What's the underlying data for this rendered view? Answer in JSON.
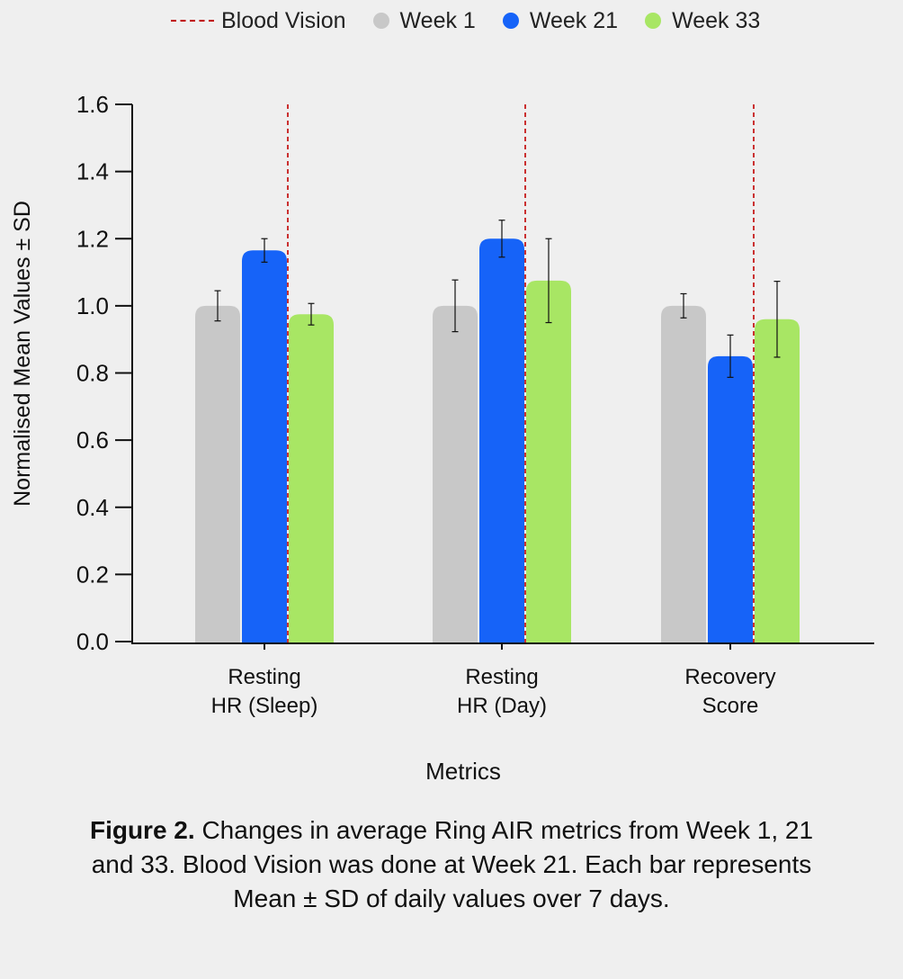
{
  "legend": {
    "reference_label": "Blood Vision",
    "series_labels": [
      "Week 1",
      "Week 21",
      "Week 33"
    ]
  },
  "chart_data": {
    "type": "bar",
    "title": "",
    "xlabel": "Metrics",
    "ylabel": "Normalised Mean Values ± SD",
    "ylim": [
      0.0,
      1.6
    ],
    "yticks": [
      "0.0",
      "0.2",
      "0.4",
      "0.6",
      "0.8",
      "1.0",
      "1.2",
      "1.4",
      "1.6"
    ],
    "grid": false,
    "legend_position": "top",
    "categories": [
      [
        "Resting",
        "HR (Sleep)"
      ],
      [
        "Resting",
        "HR (Day)"
      ],
      [
        "Recovery",
        "Score"
      ]
    ],
    "series": [
      {
        "name": "Week 1",
        "color": "#c8c8c8",
        "values": [
          1.0,
          1.0,
          1.0
        ],
        "sd": [
          0.045,
          0.077,
          0.036
        ]
      },
      {
        "name": "Week 21",
        "color": "#1663f8",
        "values": [
          1.165,
          1.2,
          0.85
        ],
        "sd": [
          0.035,
          0.055,
          0.063
        ]
      },
      {
        "name": "Week 33",
        "color": "#a8e664",
        "values": [
          0.975,
          1.075,
          0.96
        ],
        "sd": [
          0.032,
          0.125,
          0.113
        ]
      }
    ],
    "reference_line": {
      "name": "Blood Vision",
      "color": "#c00000",
      "style": "dashed",
      "position": "at Week 21 in each group"
    }
  },
  "caption": {
    "label": "Figure 2.",
    "line1": "Changes in average Ring AIR metrics from Week 1, 21",
    "line2": "and 33. Blood Vision was done at Week 21. Each bar represents",
    "line3": "Mean ± SD of daily values over 7 days."
  }
}
